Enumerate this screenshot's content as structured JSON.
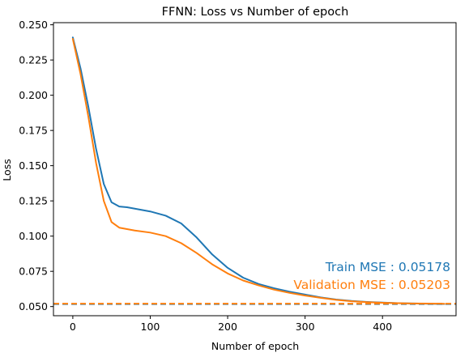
{
  "chart_data": {
    "type": "line",
    "title": "FFNN: Loss vs Number of epoch",
    "xlabel": "Number of epoch",
    "ylabel": "Loss",
    "xlim": [
      -25,
      495
    ],
    "ylim": [
      0.0435,
      0.2515
    ],
    "x_ticks": [
      0,
      100,
      200,
      300,
      400
    ],
    "y_ticks": [
      0.05,
      0.075,
      0.1,
      0.125,
      0.15,
      0.175,
      0.2,
      0.225,
      0.25
    ],
    "y_tick_labels": [
      "0.050",
      "0.075",
      "0.100",
      "0.125",
      "0.150",
      "0.175",
      "0.200",
      "0.225",
      "0.250"
    ],
    "grid": false,
    "legend": "none",
    "series": [
      {
        "color": "#1f77b4",
        "x": [
          0,
          10,
          20,
          30,
          40,
          50,
          60,
          70,
          80,
          100,
          120,
          140,
          160,
          180,
          200,
          220,
          240,
          260,
          280,
          300,
          320,
          340,
          360,
          380,
          400,
          420,
          440,
          460,
          480
        ],
        "y": [
          0.241,
          0.219,
          0.192,
          0.162,
          0.137,
          0.124,
          0.121,
          0.1205,
          0.1195,
          0.1175,
          0.1145,
          0.109,
          0.099,
          0.087,
          0.0775,
          0.0705,
          0.066,
          0.063,
          0.0605,
          0.0585,
          0.0565,
          0.055,
          0.054,
          0.0533,
          0.0528,
          0.0524,
          0.0522,
          0.052,
          0.0518
        ]
      },
      {
        "color": "#ff7f0e",
        "x": [
          0,
          10,
          20,
          30,
          40,
          50,
          60,
          70,
          80,
          100,
          120,
          140,
          160,
          180,
          200,
          220,
          240,
          260,
          280,
          300,
          320,
          340,
          360,
          380,
          400,
          420,
          440,
          460,
          480
        ],
        "y": [
          0.24,
          0.215,
          0.185,
          0.152,
          0.125,
          0.11,
          0.106,
          0.105,
          0.104,
          0.1025,
          0.1,
          0.095,
          0.088,
          0.08,
          0.0735,
          0.0685,
          0.065,
          0.062,
          0.0597,
          0.0578,
          0.0562,
          0.0548,
          0.0538,
          0.0531,
          0.0527,
          0.0524,
          0.0522,
          0.0521,
          0.052
        ]
      }
    ],
    "reference_lines": [
      {
        "y": 0.05178,
        "color": "#1f77b4",
        "style": "dashed"
      },
      {
        "y": 0.05203,
        "color": "#ff7f0e",
        "style": "dashed"
      }
    ],
    "annotations": [
      {
        "text": "Train MSE : 0.05178",
        "color": "#1f77b4"
      },
      {
        "text": "Validation MSE : 0.05203",
        "color": "#ff7f0e"
      }
    ]
  }
}
